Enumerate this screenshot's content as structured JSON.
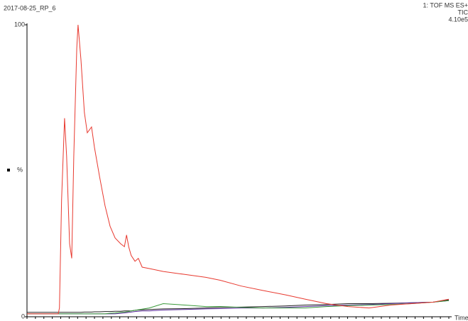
{
  "chart_data": {
    "type": "line",
    "title": "2017-08-25_RP_6",
    "info": [
      "1: TOF MS ES+",
      "TIC",
      "4.10e5"
    ],
    "ylabel": "%",
    "xlabel": "Time",
    "x": [
      0,
      7.4,
      7.7,
      8.2,
      8.9,
      9.4,
      10.1,
      10.6,
      11.1,
      11.8,
      12.1,
      12.8,
      13.6,
      14.3,
      14.8,
      15.3,
      16.0,
      17.2,
      18.5,
      19.7,
      20.9,
      22.2,
      23.1,
      23.6,
      24.1,
      24.7,
      25.6,
      26.4,
      27.3,
      29.0,
      32.3,
      37.4,
      42.4,
      45.8,
      50.8,
      55.9,
      61.3,
      66.0,
      71.0,
      76.1,
      81.1,
      86.2,
      91.2,
      96.3,
      100
    ],
    "xlim": [
      0,
      100
    ],
    "xticks": [
      0,
      2,
      4,
      6,
      8,
      10,
      12,
      14,
      16,
      18,
      20,
      22,
      24,
      26,
      28,
      30,
      32,
      34,
      36,
      38,
      40,
      42,
      44,
      46,
      48,
      50,
      52,
      54,
      56,
      58,
      60,
      62,
      64,
      66,
      68,
      70,
      72,
      74,
      76,
      78,
      80,
      82,
      84,
      86,
      88,
      90,
      92,
      94,
      96,
      98,
      100
    ],
    "ylim": [
      0,
      100
    ],
    "yticks": [
      0,
      100
    ],
    "series": [
      {
        "name": "black",
        "color": "#222222",
        "values": [
          1.5,
          1.5,
          1.5,
          1.5,
          1.5,
          1.5,
          1.5,
          1.5,
          1.5,
          1.5,
          1.5,
          1.5,
          1.6,
          1.6,
          1.6,
          1.6,
          1.7,
          1.7,
          1.8,
          1.8,
          1.9,
          1.9,
          2,
          2,
          2,
          2,
          2.2,
          2.3,
          2.4,
          2.5,
          2.7,
          2.8,
          3,
          3.2,
          3.3,
          3.5,
          3.7,
          4,
          4.2,
          4.5,
          4.5,
          4.6,
          4.8,
          5,
          5.8
        ]
      },
      {
        "name": "purple",
        "color": "#5a2a9a",
        "values": [
          1,
          1,
          1,
          1,
          1,
          1,
          1,
          1,
          1,
          1,
          1,
          1,
          1,
          1,
          1,
          1,
          1,
          1,
          1,
          1,
          1,
          1.2,
          1.3,
          1.4,
          1.5,
          1.6,
          1.8,
          1.9,
          2,
          2,
          2.3,
          2.5,
          2.7,
          2.8,
          3,
          3,
          3.2,
          3.5,
          3.8,
          4,
          4.2,
          4.5,
          4.8,
          5,
          5.5
        ]
      },
      {
        "name": "green",
        "color": "#3a9a3a",
        "values": [
          1,
          1,
          1,
          1,
          1,
          1,
          1,
          1,
          1,
          1,
          1,
          1,
          1,
          1,
          1,
          1,
          1,
          1,
          1,
          1.2,
          1.3,
          1.5,
          1.6,
          1.7,
          1.8,
          2,
          2.2,
          2.4,
          2.6,
          3,
          4.5,
          4,
          3.5,
          3.5,
          3.2,
          3,
          3,
          3,
          3.5,
          3.8,
          4,
          4.2,
          4.5,
          5,
          5.5
        ]
      },
      {
        "name": "red",
        "color": "#e8392f",
        "values": [
          1,
          1,
          3,
          40,
          68,
          55,
          25,
          20,
          55,
          92,
          100,
          88,
          70,
          63,
          64,
          65,
          58,
          48,
          38,
          31,
          27,
          25,
          24,
          28,
          24,
          21,
          19,
          20,
          17,
          16.5,
          15.5,
          14.5,
          13.5,
          12.5,
          10.5,
          9,
          7.5,
          6,
          4.5,
          3.5,
          3,
          4,
          4.5,
          5,
          6
        ]
      }
    ]
  }
}
